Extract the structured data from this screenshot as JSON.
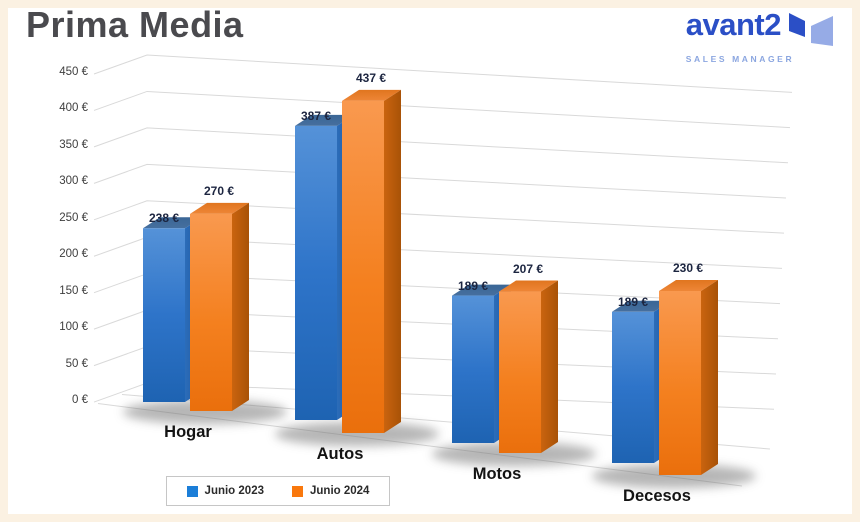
{
  "header": {
    "title": "Prima Media",
    "logo": {
      "brand": "avant2",
      "tagline": "SALES MANAGER"
    }
  },
  "colors": {
    "series1": "#1b7ed8",
    "series2": "#f9780d",
    "grid": "#d9d9d9",
    "title_text": "#4a4a4e",
    "brand_blue": "#2b4fc6",
    "tagline_blue": "#8ba6e0",
    "frame_cream": "#fbf1e2",
    "value_label_text": "#1c2540"
  },
  "chart_data": {
    "type": "bar",
    "variant": "3d-clustered-column",
    "title": "Prima Media",
    "categories": [
      "Hogar",
      "Autos",
      "Motos",
      "Decesos"
    ],
    "series": [
      {
        "name": "Junio 2023",
        "color": "#2e74c9",
        "values": [
          238,
          387,
          189,
          189
        ],
        "labels": [
          "238 €",
          "387 €",
          "189 €",
          "189 €"
        ]
      },
      {
        "name": "Junio 2024",
        "color": "#f4790f",
        "values": [
          270,
          437,
          207,
          230
        ],
        "labels": [
          "270 €",
          "437 €",
          "207 €",
          "230 €"
        ]
      }
    ],
    "y_axis": {
      "min": 0,
      "max": 450,
      "step": 50,
      "unit": "€",
      "tick_labels_top_to_bottom": [
        "450 €",
        "400 €",
        "350 €",
        "300 €",
        "250 €",
        "200 €",
        "150 €",
        "100 €",
        "50 €",
        "0 €"
      ]
    },
    "legend": {
      "position": "bottom",
      "items": [
        "Junio 2023",
        "Junio 2024"
      ]
    },
    "grid": true
  }
}
